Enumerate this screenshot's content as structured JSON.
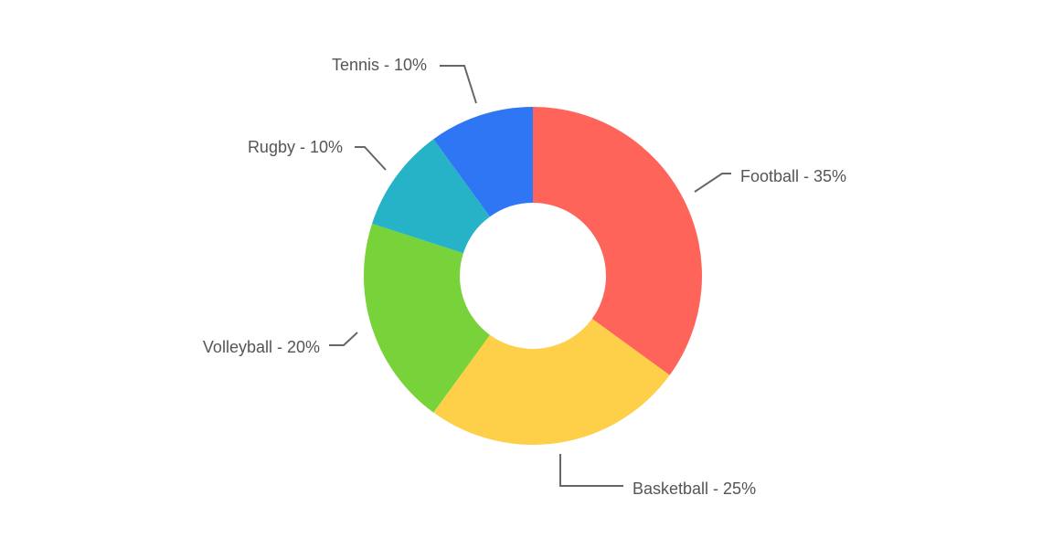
{
  "chart_data": {
    "type": "pie",
    "variant": "donut",
    "title": "",
    "slices": [
      {
        "name": "Football",
        "value": 35,
        "label": "Football - 35%",
        "color": "#ff645a"
      },
      {
        "name": "Basketball",
        "value": 25,
        "label": "Basketball - 25%",
        "color": "#fecf49"
      },
      {
        "name": "Volleyball",
        "value": 20,
        "label": "Volleyball - 20%",
        "color": "#78d239"
      },
      {
        "name": "Rugby",
        "value": 10,
        "label": "Rugby - 10%",
        "color": "#26b3c8"
      },
      {
        "name": "Tennis",
        "value": 10,
        "label": "Tennis - 10%",
        "color": "#2f76f5"
      }
    ],
    "legend": "none",
    "label_style": "outside-with-leader-lines"
  },
  "colors": {
    "background": "#ffffff",
    "label_text": "#555555",
    "leader_line": "#666666"
  }
}
